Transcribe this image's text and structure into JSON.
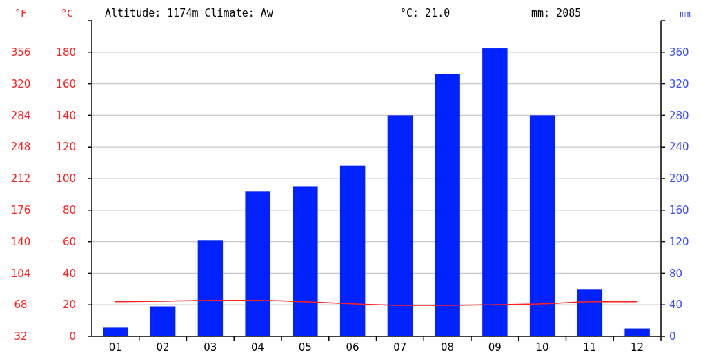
{
  "chart_data": {
    "type": "bar",
    "title": "Altitude: 1174m Climate: Aw",
    "annotations": [
      "°C: 21.0",
      "mm: 2085"
    ],
    "ylabel": "°C",
    "y2label": "mm",
    "y3label": "°F",
    "categories": [
      "01",
      "02",
      "03",
      "04",
      "05",
      "06",
      "07",
      "08",
      "09",
      "10",
      "11",
      "12"
    ],
    "series": [
      {
        "axis": "y2",
        "color": "#0022ff",
        "values": [
          11,
          38,
          122,
          184,
          190,
          216,
          280,
          332,
          365,
          280,
          60,
          10
        ]
      },
      {
        "type": "line",
        "axis": "y",
        "color": "#ff2020",
        "values": [
          21.9,
          22.3,
          22.8,
          22.8,
          21.9,
          20.6,
          19.7,
          19.7,
          20.1,
          20.6,
          21.9,
          21.9
        ]
      }
    ],
    "ylim": [
      0,
      200
    ],
    "yticks": [
      0,
      20,
      40,
      60,
      80,
      100,
      120,
      140,
      160,
      180,
      {
        "value": 200,
        "label": null
      }
    ],
    "y2lim": [
      0,
      400
    ],
    "y2ticks": [
      0,
      40,
      80,
      120,
      160,
      200,
      240,
      280,
      320,
      360,
      {
        "value": 400,
        "label": null
      }
    ],
    "y3lim": [
      32,
      392
    ],
    "y3ticks": [
      32,
      68,
      104,
      140,
      176,
      212,
      248,
      284,
      320,
      356
    ],
    "grid": "y"
  }
}
